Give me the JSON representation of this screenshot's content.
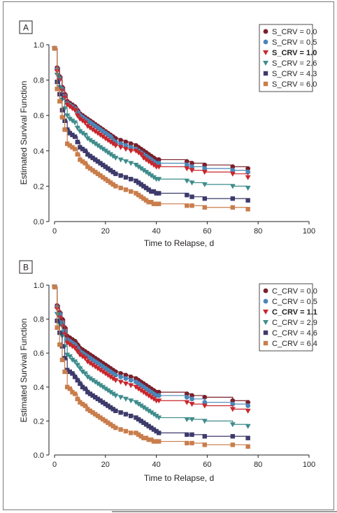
{
  "chart_data": [
    {
      "panel_label": "A",
      "type": "line",
      "step": true,
      "markers": true,
      "xlabel": "Time to Relapse, d",
      "ylabel": "Estimated Survival Function",
      "xlim": [
        0,
        100
      ],
      "ylim": [
        0,
        1.0
      ],
      "xticks": [
        "0",
        "20",
        "40",
        "60",
        "80",
        "100"
      ],
      "yticks": [
        "0.0",
        "0.2",
        "0.4",
        "0.6",
        "0.8",
        "1.0"
      ],
      "legend_position": "top-right",
      "x": [
        0,
        1,
        2,
        3,
        4,
        5,
        6,
        7,
        8,
        9,
        10,
        11,
        12,
        13,
        14,
        15,
        16,
        17,
        18,
        19,
        20,
        21,
        22,
        23,
        24,
        26,
        28,
        30,
        32,
        33,
        34,
        35,
        36,
        37,
        38,
        39,
        40,
        41,
        52,
        54,
        59,
        70,
        76
      ],
      "series": [
        {
          "name": "S_CRV = 0.0",
          "color": "#7a1f2b",
          "marker": "circle",
          "bold": false,
          "values": [
            0.98,
            0.87,
            0.82,
            0.76,
            0.72,
            0.68,
            0.67,
            0.66,
            0.65,
            0.63,
            0.61,
            0.6,
            0.59,
            0.58,
            0.57,
            0.56,
            0.55,
            0.54,
            0.53,
            0.52,
            0.51,
            0.5,
            0.49,
            0.48,
            0.47,
            0.46,
            0.45,
            0.44,
            0.43,
            0.42,
            0.41,
            0.4,
            0.39,
            0.38,
            0.37,
            0.36,
            0.35,
            0.35,
            0.34,
            0.33,
            0.32,
            0.31,
            0.3
          ]
        },
        {
          "name": "S_CRV = 0.5",
          "color": "#4a86b8",
          "marker": "circle",
          "bold": false,
          "values": [
            0.98,
            0.86,
            0.81,
            0.75,
            0.71,
            0.67,
            0.66,
            0.65,
            0.64,
            0.62,
            0.6,
            0.59,
            0.58,
            0.57,
            0.56,
            0.55,
            0.54,
            0.53,
            0.52,
            0.51,
            0.5,
            0.49,
            0.48,
            0.46,
            0.45,
            0.44,
            0.43,
            0.42,
            0.41,
            0.4,
            0.39,
            0.38,
            0.37,
            0.36,
            0.35,
            0.34,
            0.33,
            0.33,
            0.32,
            0.31,
            0.3,
            0.29,
            0.28
          ]
        },
        {
          "name": "S_CRV = 1.0",
          "color": "#c8262c",
          "marker": "triangle-down",
          "bold": true,
          "values": [
            0.98,
            0.85,
            0.8,
            0.74,
            0.7,
            0.66,
            0.65,
            0.64,
            0.63,
            0.6,
            0.58,
            0.57,
            0.56,
            0.54,
            0.53,
            0.52,
            0.51,
            0.5,
            0.49,
            0.48,
            0.47,
            0.46,
            0.45,
            0.44,
            0.43,
            0.42,
            0.41,
            0.4,
            0.4,
            0.39,
            0.38,
            0.36,
            0.35,
            0.34,
            0.33,
            0.32,
            0.31,
            0.31,
            0.3,
            0.29,
            0.28,
            0.27,
            0.25
          ]
        },
        {
          "name": "S_CRV = 2.6",
          "color": "#3f8c8c",
          "marker": "triangle-down",
          "bold": false,
          "values": [
            0.98,
            0.83,
            0.76,
            0.69,
            0.64,
            0.6,
            0.58,
            0.57,
            0.56,
            0.53,
            0.51,
            0.5,
            0.49,
            0.47,
            0.46,
            0.45,
            0.44,
            0.43,
            0.42,
            0.41,
            0.4,
            0.39,
            0.38,
            0.37,
            0.36,
            0.35,
            0.34,
            0.33,
            0.32,
            0.31,
            0.3,
            0.29,
            0.28,
            0.27,
            0.26,
            0.25,
            0.24,
            0.24,
            0.23,
            0.22,
            0.21,
            0.2,
            0.19
          ]
        },
        {
          "name": "S_CRV = 4.3",
          "color": "#3d3a6b",
          "marker": "square",
          "bold": false,
          "values": [
            0.98,
            0.79,
            0.72,
            0.63,
            0.57,
            0.52,
            0.5,
            0.49,
            0.48,
            0.45,
            0.42,
            0.41,
            0.4,
            0.38,
            0.37,
            0.36,
            0.35,
            0.34,
            0.33,
            0.32,
            0.31,
            0.3,
            0.29,
            0.28,
            0.27,
            0.26,
            0.25,
            0.24,
            0.23,
            0.22,
            0.21,
            0.2,
            0.19,
            0.18,
            0.17,
            0.17,
            0.16,
            0.16,
            0.15,
            0.14,
            0.13,
            0.13,
            0.12
          ]
        },
        {
          "name": "S_CRV = 6.0",
          "color": "#c97d4b",
          "marker": "square",
          "bold": false,
          "values": [
            0.98,
            0.75,
            0.68,
            0.59,
            0.52,
            0.44,
            0.43,
            0.42,
            0.41,
            0.38,
            0.35,
            0.34,
            0.33,
            0.31,
            0.3,
            0.29,
            0.28,
            0.27,
            0.26,
            0.25,
            0.24,
            0.23,
            0.22,
            0.21,
            0.2,
            0.19,
            0.18,
            0.17,
            0.16,
            0.15,
            0.14,
            0.13,
            0.12,
            0.11,
            0.11,
            0.1,
            0.1,
            0.1,
            0.09,
            0.09,
            0.08,
            0.08,
            0.07
          ]
        }
      ]
    },
    {
      "panel_label": "B",
      "type": "line",
      "step": true,
      "markers": true,
      "xlabel": "Time to Relapse, d",
      "ylabel": "Estimated Survival Function",
      "xlim": [
        0,
        100
      ],
      "ylim": [
        0,
        1.0
      ],
      "xticks": [
        "0",
        "20",
        "40",
        "60",
        "80",
        "100"
      ],
      "yticks": [
        "0.0",
        "0.2",
        "0.4",
        "0.6",
        "0.8",
        "1.0"
      ],
      "legend_position": "top-right",
      "x": [
        0,
        1,
        2,
        3,
        4,
        5,
        6,
        7,
        8,
        9,
        10,
        11,
        12,
        13,
        14,
        15,
        16,
        17,
        18,
        19,
        20,
        21,
        22,
        23,
        24,
        26,
        28,
        30,
        32,
        33,
        34,
        35,
        36,
        37,
        38,
        39,
        40,
        41,
        52,
        54,
        59,
        70,
        76
      ],
      "series": [
        {
          "name": "C_CRV = 0.0",
          "color": "#7a1f2b",
          "marker": "circle",
          "bold": false,
          "values": [
            0.99,
            0.88,
            0.84,
            0.8,
            0.75,
            0.7,
            0.69,
            0.68,
            0.67,
            0.65,
            0.63,
            0.62,
            0.61,
            0.6,
            0.59,
            0.58,
            0.57,
            0.56,
            0.55,
            0.54,
            0.53,
            0.52,
            0.51,
            0.5,
            0.49,
            0.48,
            0.47,
            0.46,
            0.45,
            0.44,
            0.43,
            0.42,
            0.41,
            0.4,
            0.39,
            0.38,
            0.37,
            0.37,
            0.36,
            0.35,
            0.34,
            0.32,
            0.31
          ]
        },
        {
          "name": "C_CRV = 0.5",
          "color": "#4a86b8",
          "marker": "circle",
          "bold": false,
          "values": [
            0.99,
            0.87,
            0.83,
            0.78,
            0.73,
            0.68,
            0.67,
            0.66,
            0.65,
            0.63,
            0.61,
            0.6,
            0.59,
            0.58,
            0.57,
            0.56,
            0.55,
            0.54,
            0.53,
            0.52,
            0.51,
            0.5,
            0.49,
            0.48,
            0.47,
            0.46,
            0.45,
            0.44,
            0.43,
            0.42,
            0.41,
            0.4,
            0.39,
            0.38,
            0.37,
            0.36,
            0.35,
            0.35,
            0.34,
            0.33,
            0.31,
            0.3,
            0.29
          ]
        },
        {
          "name": "C_CRV = 1.1",
          "color": "#c8262c",
          "marker": "triangle-down",
          "bold": true,
          "values": [
            0.99,
            0.86,
            0.81,
            0.76,
            0.71,
            0.66,
            0.65,
            0.64,
            0.63,
            0.61,
            0.59,
            0.58,
            0.57,
            0.55,
            0.54,
            0.53,
            0.52,
            0.51,
            0.5,
            0.49,
            0.48,
            0.47,
            0.46,
            0.45,
            0.44,
            0.43,
            0.42,
            0.41,
            0.4,
            0.39,
            0.38,
            0.37,
            0.36,
            0.35,
            0.34,
            0.33,
            0.32,
            0.32,
            0.31,
            0.3,
            0.29,
            0.27,
            0.26
          ]
        },
        {
          "name": "C_CRV = 2.9",
          "color": "#3f8c8c",
          "marker": "triangle-down",
          "bold": false,
          "values": [
            0.99,
            0.83,
            0.77,
            0.7,
            0.64,
            0.59,
            0.58,
            0.56,
            0.55,
            0.53,
            0.51,
            0.49,
            0.48,
            0.46,
            0.45,
            0.44,
            0.43,
            0.42,
            0.41,
            0.4,
            0.39,
            0.38,
            0.37,
            0.36,
            0.35,
            0.34,
            0.33,
            0.32,
            0.31,
            0.3,
            0.29,
            0.28,
            0.27,
            0.26,
            0.25,
            0.24,
            0.23,
            0.22,
            0.21,
            0.21,
            0.2,
            0.18,
            0.17
          ]
        },
        {
          "name": "C_CRV = 4.6",
          "color": "#3d3a6b",
          "marker": "square",
          "bold": false,
          "values": [
            0.99,
            0.79,
            0.72,
            0.64,
            0.57,
            0.5,
            0.49,
            0.48,
            0.46,
            0.44,
            0.42,
            0.4,
            0.39,
            0.37,
            0.36,
            0.35,
            0.34,
            0.33,
            0.32,
            0.31,
            0.3,
            0.29,
            0.28,
            0.27,
            0.26,
            0.25,
            0.24,
            0.23,
            0.22,
            0.21,
            0.2,
            0.19,
            0.18,
            0.17,
            0.16,
            0.15,
            0.14,
            0.13,
            0.12,
            0.12,
            0.11,
            0.11,
            0.1
          ]
        },
        {
          "name": "C_CRV = 6.4",
          "color": "#c97d4b",
          "marker": "square",
          "bold": false,
          "values": [
            0.99,
            0.75,
            0.65,
            0.56,
            0.49,
            0.4,
            0.39,
            0.37,
            0.36,
            0.33,
            0.31,
            0.3,
            0.29,
            0.27,
            0.26,
            0.25,
            0.24,
            0.23,
            0.22,
            0.21,
            0.2,
            0.19,
            0.18,
            0.17,
            0.16,
            0.15,
            0.14,
            0.13,
            0.13,
            0.12,
            0.11,
            0.1,
            0.1,
            0.09,
            0.09,
            0.08,
            0.08,
            0.08,
            0.07,
            0.07,
            0.06,
            0.06,
            0.05
          ]
        }
      ]
    }
  ]
}
